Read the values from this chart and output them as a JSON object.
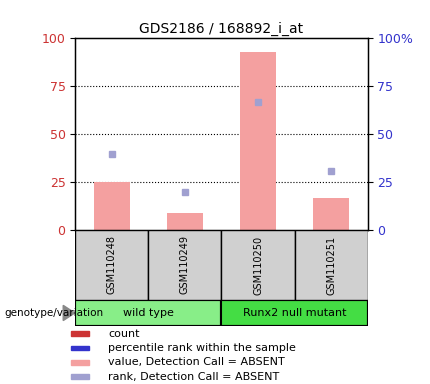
{
  "title": "GDS2186 / 168892_i_at",
  "samples": [
    "GSM110248",
    "GSM110249",
    "GSM110250",
    "GSM110251"
  ],
  "bar_values": [
    25,
    9,
    93,
    17
  ],
  "rank_values": [
    40,
    20,
    67,
    31
  ],
  "ylim": [
    0,
    100
  ],
  "yticks": [
    0,
    25,
    50,
    75,
    100
  ],
  "bar_color": "#f4a0a0",
  "rank_color": "#a0a0d0",
  "left_axis_color": "#cc3333",
  "right_axis_color": "#3333cc",
  "groups": [
    {
      "label": "wild type",
      "samples": [
        0,
        1
      ],
      "color": "#88ee88"
    },
    {
      "label": "Runx2 null mutant",
      "samples": [
        2,
        3
      ],
      "color": "#44dd44"
    }
  ],
  "legend_items": [
    {
      "color": "#cc3333",
      "label": "count"
    },
    {
      "color": "#3333cc",
      "label": "percentile rank within the sample"
    },
    {
      "color": "#f4a0a0",
      "label": "value, Detection Call = ABSENT"
    },
    {
      "color": "#a0a0d0",
      "label": "rank, Detection Call = ABSENT"
    }
  ],
  "genotype_label": "genotype/variation",
  "sample_box_color": "#d0d0d0",
  "sample_box_border": "#000000",
  "plot_bg": "#ffffff",
  "title_fontsize": 10,
  "label_fontsize": 7,
  "legend_fontsize": 8
}
